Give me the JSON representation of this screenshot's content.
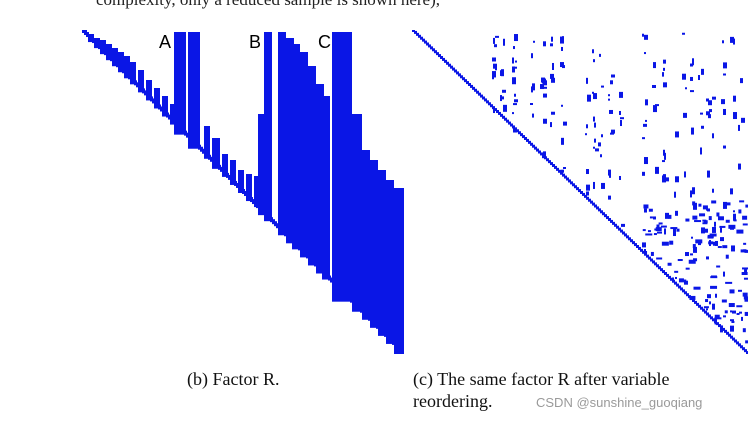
{
  "page": {
    "top_cut_text": "complexity, only a reduced sample is shown here),",
    "colors": {
      "matrix_blue": "#0a16e6",
      "text": "#111111",
      "watermark": "#9a9a9a"
    }
  },
  "figure_b": {
    "labels": [
      "A",
      "B",
      "C"
    ],
    "caption": "(b) Factor R."
  },
  "figure_c": {
    "caption_line1": "(c) The same factor R after variable",
    "caption_line2": "reordering."
  },
  "watermark": "CSDN @sunshine_guoqiang"
}
